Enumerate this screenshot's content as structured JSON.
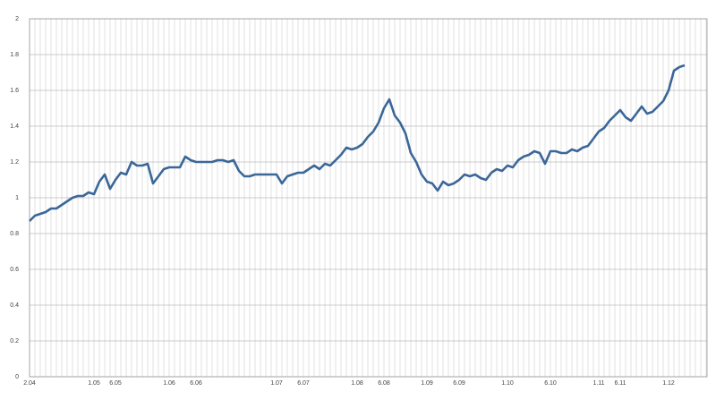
{
  "chart_data": {
    "type": "line",
    "categories": [
      "2.04",
      null,
      null,
      null,
      null,
      null,
      null,
      null,
      null,
      null,
      null,
      null,
      "1.05",
      null,
      null,
      null,
      "6.05",
      null,
      null,
      null,
      null,
      null,
      null,
      null,
      null,
      null,
      "1.06",
      null,
      null,
      null,
      null,
      "6.06",
      null,
      null,
      null,
      null,
      null,
      null,
      null,
      null,
      null,
      null,
      null,
      null,
      null,
      null,
      "1.07",
      null,
      null,
      null,
      null,
      "6.07",
      null,
      null,
      null,
      null,
      null,
      null,
      null,
      null,
      null,
      "1.08",
      null,
      null,
      null,
      null,
      "6.08",
      null,
      null,
      null,
      null,
      null,
      null,
      null,
      "1.09",
      null,
      null,
      null,
      null,
      null,
      "6.09",
      null,
      null,
      null,
      null,
      null,
      null,
      null,
      null,
      "1.10",
      null,
      null,
      null,
      null,
      null,
      null,
      null,
      "6.10",
      null,
      null,
      null,
      null,
      null,
      null,
      null,
      null,
      "1.11",
      null,
      null,
      null,
      "6.11",
      null,
      null,
      null,
      null,
      null,
      null,
      null,
      null,
      "1.12",
      null,
      null,
      null
    ],
    "series": [
      {
        "color": "#3b6798",
        "values": [
          0.87,
          0.9,
          0.91,
          0.92,
          0.94,
          0.94,
          0.96,
          0.98,
          1.0,
          1.01,
          1.01,
          1.03,
          1.02,
          1.09,
          1.13,
          1.05,
          1.1,
          1.14,
          1.13,
          1.2,
          1.18,
          1.18,
          1.19,
          1.08,
          1.12,
          1.16,
          1.17,
          1.17,
          1.17,
          1.23,
          1.21,
          1.2,
          1.2,
          1.2,
          1.2,
          1.21,
          1.21,
          1.2,
          1.21,
          1.15,
          1.12,
          1.12,
          1.13,
          1.13,
          1.13,
          1.13,
          1.13,
          1.08,
          1.12,
          1.13,
          1.14,
          1.14,
          1.16,
          1.18,
          1.16,
          1.19,
          1.18,
          1.21,
          1.24,
          1.28,
          1.27,
          1.28,
          1.3,
          1.34,
          1.37,
          1.42,
          1.5,
          1.55,
          1.46,
          1.42,
          1.36,
          1.25,
          1.2,
          1.13,
          1.09,
          1.08,
          1.04,
          1.09,
          1.07,
          1.08,
          1.1,
          1.13,
          1.12,
          1.13,
          1.11,
          1.1,
          1.14,
          1.16,
          1.15,
          1.18,
          1.17,
          1.21,
          1.23,
          1.24,
          1.26,
          1.25,
          1.19,
          1.26,
          1.26,
          1.25,
          1.25,
          1.27,
          1.26,
          1.28,
          1.29,
          1.33,
          1.37,
          1.39,
          1.43,
          1.46,
          1.49,
          1.45,
          1.43,
          1.47,
          1.51,
          1.47,
          1.48,
          1.51,
          1.54,
          1.6,
          1.71,
          1.73,
          1.74
        ]
      }
    ],
    "ylim": [
      0,
      2
    ],
    "yticks": [
      0,
      0.2,
      0.4,
      0.6,
      0.8,
      1,
      1.2,
      1.4,
      1.6,
      1.8,
      2
    ],
    "grid": true
  }
}
